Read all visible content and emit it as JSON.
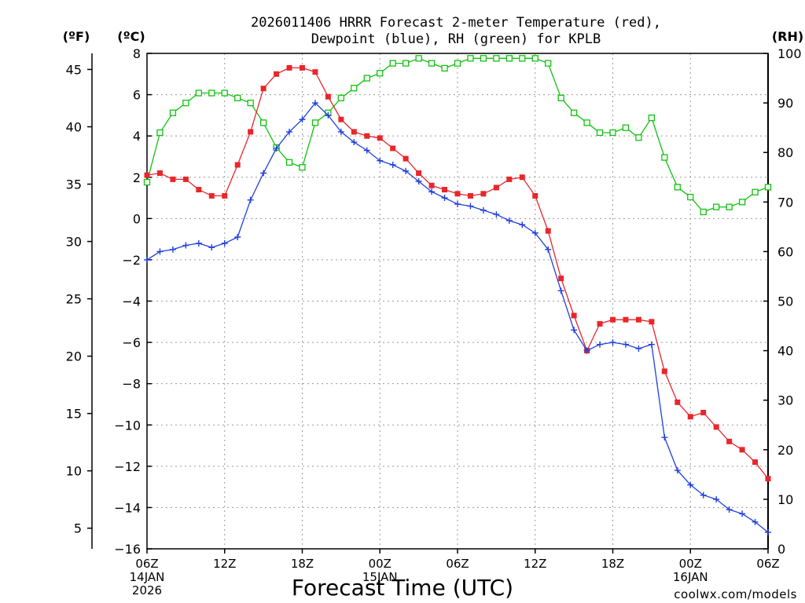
{
  "title_line1": "2026011406 HRRR Forecast 2-meter Temperature (red),",
  "title_line2": "Dewpoint (blue), RH (green) for KPLB",
  "unit_f": "(ºF)",
  "unit_c": "(ºC)",
  "unit_rh": "(RH)",
  "xlabel": "Forecast Time (UTC)",
  "credit": "coolwx.com/models",
  "colors": {
    "temperature": "#e8262b",
    "dewpoint": "#1f3fe0",
    "rh": "#11c311",
    "credit": "#e23030"
  },
  "chart_data": {
    "type": "line",
    "x_unit": "forecast hour",
    "xlim": [
      0,
      48
    ],
    "ylim_c": [
      -16,
      8
    ],
    "ylim_f": [
      3.2,
      46.4
    ],
    "ylim_rh": [
      0,
      100
    ],
    "grid": true,
    "x_ticks": [
      {
        "hour": 0,
        "label": "06Z",
        "sub1": "14JAN",
        "sub2": "2026"
      },
      {
        "hour": 6,
        "label": "12Z",
        "sub1": "",
        "sub2": ""
      },
      {
        "hour": 12,
        "label": "18Z",
        "sub1": "",
        "sub2": ""
      },
      {
        "hour": 18,
        "label": "00Z",
        "sub1": "15JAN",
        "sub2": ""
      },
      {
        "hour": 24,
        "label": "06Z",
        "sub1": "",
        "sub2": ""
      },
      {
        "hour": 30,
        "label": "12Z",
        "sub1": "",
        "sub2": ""
      },
      {
        "hour": 36,
        "label": "18Z",
        "sub1": "",
        "sub2": ""
      },
      {
        "hour": 42,
        "label": "00Z",
        "sub1": "16JAN",
        "sub2": ""
      },
      {
        "hour": 48,
        "label": "06Z",
        "sub1": "",
        "sub2": ""
      }
    ],
    "y_ticks_c": [
      8,
      6,
      4,
      2,
      0,
      -2,
      -4,
      -6,
      -8,
      -10,
      -12,
      -14,
      -16
    ],
    "y_ticks_f": [
      45,
      40,
      35,
      30,
      25,
      20,
      15,
      10,
      5
    ],
    "y_ticks_rh": [
      100,
      90,
      80,
      70,
      60,
      50,
      40,
      30,
      20,
      10,
      0
    ],
    "series": [
      {
        "name": "Temperature (red)",
        "axis": "c",
        "marker": "filled-square",
        "x": [
          0,
          1,
          2,
          3,
          4,
          5,
          6,
          7,
          8,
          9,
          10,
          11,
          12,
          13,
          14,
          15,
          16,
          17,
          18,
          19,
          20,
          21,
          22,
          23,
          24,
          25,
          26,
          27,
          28,
          29,
          30,
          31,
          32,
          33,
          34,
          35,
          36,
          37,
          38,
          39,
          40,
          41,
          42,
          43,
          44,
          45,
          46,
          47,
          48
        ],
        "values": [
          2.1,
          2.2,
          1.9,
          1.9,
          1.4,
          1.1,
          1.1,
          2.6,
          4.2,
          6.3,
          7.0,
          7.3,
          7.3,
          7.1,
          5.9,
          4.8,
          4.2,
          4.0,
          3.9,
          3.4,
          2.9,
          2.2,
          1.6,
          1.4,
          1.2,
          1.1,
          1.2,
          1.5,
          1.9,
          2.0,
          1.1,
          -0.6,
          -2.9,
          -4.7,
          -6.4,
          -5.1,
          -4.9,
          -4.9,
          -4.9,
          -5.0,
          -7.4,
          -8.9,
          -9.6,
          -9.4,
          -10.1,
          -10.8,
          -11.2,
          -11.8,
          -12.6
        ]
      },
      {
        "name": "Dewpoint (blue)",
        "axis": "c",
        "marker": "plus",
        "x": [
          0,
          1,
          2,
          3,
          4,
          5,
          6,
          7,
          8,
          9,
          10,
          11,
          12,
          13,
          14,
          15,
          16,
          17,
          18,
          19,
          20,
          21,
          22,
          23,
          24,
          25,
          26,
          27,
          28,
          29,
          30,
          31,
          32,
          33,
          34,
          35,
          36,
          37,
          38,
          39,
          40,
          41,
          42,
          43,
          44,
          45,
          46,
          47,
          48
        ],
        "values": [
          -2.0,
          -1.6,
          -1.5,
          -1.3,
          -1.2,
          -1.4,
          -1.2,
          -0.9,
          0.9,
          2.2,
          3.4,
          4.2,
          4.8,
          5.6,
          5.0,
          4.2,
          3.7,
          3.3,
          2.8,
          2.6,
          2.3,
          1.8,
          1.3,
          1.0,
          0.7,
          0.6,
          0.4,
          0.2,
          -0.1,
          -0.3,
          -0.7,
          -1.5,
          -3.5,
          -5.4,
          -6.4,
          -6.1,
          -6.0,
          -6.1,
          -6.3,
          -6.1,
          -10.6,
          -12.2,
          -12.9,
          -13.4,
          -13.6,
          -14.1,
          -14.3,
          -14.7,
          -15.2
        ]
      },
      {
        "name": "RH (green)",
        "axis": "rh",
        "marker": "open-square",
        "x": [
          0,
          1,
          2,
          3,
          4,
          5,
          6,
          7,
          8,
          9,
          10,
          11,
          12,
          13,
          14,
          15,
          16,
          17,
          18,
          19,
          20,
          21,
          22,
          23,
          24,
          25,
          26,
          27,
          28,
          29,
          30,
          31,
          32,
          33,
          34,
          35,
          36,
          37,
          38,
          39,
          40,
          41,
          42,
          43,
          44,
          45,
          46,
          47,
          48
        ],
        "values": [
          74,
          84,
          88,
          90,
          92,
          92,
          92,
          91,
          90,
          86,
          81,
          78,
          77,
          86,
          88,
          91,
          93,
          95,
          96,
          98,
          98,
          99,
          98,
          97,
          98,
          99,
          99,
          99,
          99,
          99,
          99,
          98,
          91,
          88,
          86,
          84,
          84,
          85,
          83,
          87,
          79,
          73,
          71,
          68,
          69,
          69,
          70,
          72,
          73
        ]
      }
    ]
  }
}
